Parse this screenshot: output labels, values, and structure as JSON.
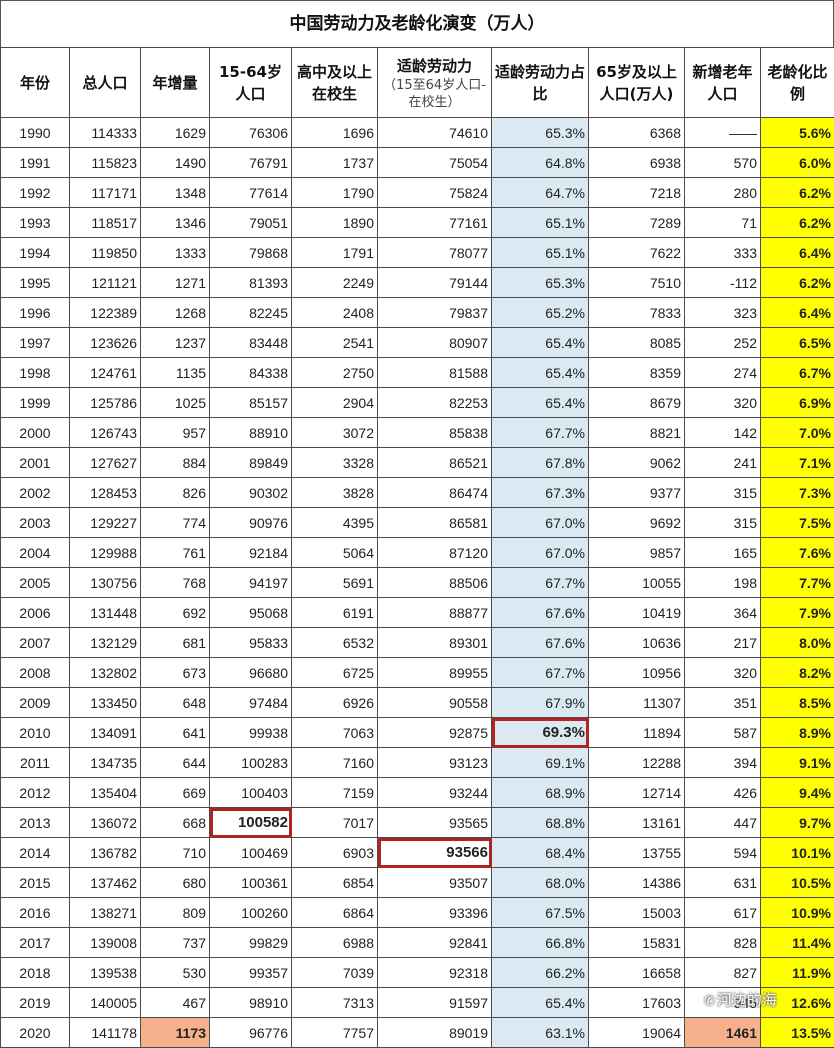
{
  "title": "中国劳动力及老龄化演变（万人）",
  "headers": [
    {
      "main": "年份",
      "sub": ""
    },
    {
      "main": "总人口",
      "sub": ""
    },
    {
      "main": "年增量",
      "sub": ""
    },
    {
      "main": "15-64岁人口",
      "sub": ""
    },
    {
      "main": "高中及以上在校生",
      "sub": ""
    },
    {
      "main": "适龄劳动力",
      "sub": "（15至64岁人口-在校生）"
    },
    {
      "main": "适龄劳动力占比",
      "sub": ""
    },
    {
      "main": "65岁及以上人口(万人)",
      "sub": ""
    },
    {
      "main": "新增老年人口",
      "sub": ""
    },
    {
      "main": "老龄化比例",
      "sub": ""
    }
  ],
  "rows": [
    [
      "1990",
      "114333",
      "1629",
      "76306",
      "1696",
      "74610",
      "65.3%",
      "6368",
      "——",
      "5.6%"
    ],
    [
      "1991",
      "115823",
      "1490",
      "76791",
      "1737",
      "75054",
      "64.8%",
      "6938",
      "570",
      "6.0%"
    ],
    [
      "1992",
      "117171",
      "1348",
      "77614",
      "1790",
      "75824",
      "64.7%",
      "7218",
      "280",
      "6.2%"
    ],
    [
      "1993",
      "118517",
      "1346",
      "79051",
      "1890",
      "77161",
      "65.1%",
      "7289",
      "71",
      "6.2%"
    ],
    [
      "1994",
      "119850",
      "1333",
      "79868",
      "1791",
      "78077",
      "65.1%",
      "7622",
      "333",
      "6.4%"
    ],
    [
      "1995",
      "121121",
      "1271",
      "81393",
      "2249",
      "79144",
      "65.3%",
      "7510",
      "-112",
      "6.2%"
    ],
    [
      "1996",
      "122389",
      "1268",
      "82245",
      "2408",
      "79837",
      "65.2%",
      "7833",
      "323",
      "6.4%"
    ],
    [
      "1997",
      "123626",
      "1237",
      "83448",
      "2541",
      "80907",
      "65.4%",
      "8085",
      "252",
      "6.5%"
    ],
    [
      "1998",
      "124761",
      "1135",
      "84338",
      "2750",
      "81588",
      "65.4%",
      "8359",
      "274",
      "6.7%"
    ],
    [
      "1999",
      "125786",
      "1025",
      "85157",
      "2904",
      "82253",
      "65.4%",
      "8679",
      "320",
      "6.9%"
    ],
    [
      "2000",
      "126743",
      "957",
      "88910",
      "3072",
      "85838",
      "67.7%",
      "8821",
      "142",
      "7.0%"
    ],
    [
      "2001",
      "127627",
      "884",
      "89849",
      "3328",
      "86521",
      "67.8%",
      "9062",
      "241",
      "7.1%"
    ],
    [
      "2002",
      "128453",
      "826",
      "90302",
      "3828",
      "86474",
      "67.3%",
      "9377",
      "315",
      "7.3%"
    ],
    [
      "2003",
      "129227",
      "774",
      "90976",
      "4395",
      "86581",
      "67.0%",
      "9692",
      "315",
      "7.5%"
    ],
    [
      "2004",
      "129988",
      "761",
      "92184",
      "5064",
      "87120",
      "67.0%",
      "9857",
      "165",
      "7.6%"
    ],
    [
      "2005",
      "130756",
      "768",
      "94197",
      "5691",
      "88506",
      "67.7%",
      "10055",
      "198",
      "7.7%"
    ],
    [
      "2006",
      "131448",
      "692",
      "95068",
      "6191",
      "88877",
      "67.6%",
      "10419",
      "364",
      "7.9%"
    ],
    [
      "2007",
      "132129",
      "681",
      "95833",
      "6532",
      "89301",
      "67.6%",
      "10636",
      "217",
      "8.0%"
    ],
    [
      "2008",
      "132802",
      "673",
      "96680",
      "6725",
      "89955",
      "67.7%",
      "10956",
      "320",
      "8.2%"
    ],
    [
      "2009",
      "133450",
      "648",
      "97484",
      "6926",
      "90558",
      "67.9%",
      "11307",
      "351",
      "8.5%"
    ],
    [
      "2010",
      "134091",
      "641",
      "99938",
      "7063",
      "92875",
      "69.3%",
      "11894",
      "587",
      "8.9%"
    ],
    [
      "2011",
      "134735",
      "644",
      "100283",
      "7160",
      "93123",
      "69.1%",
      "12288",
      "394",
      "9.1%"
    ],
    [
      "2012",
      "135404",
      "669",
      "100403",
      "7159",
      "93244",
      "68.9%",
      "12714",
      "426",
      "9.4%"
    ],
    [
      "2013",
      "136072",
      "668",
      "100582",
      "7017",
      "93565",
      "68.8%",
      "13161",
      "447",
      "9.7%"
    ],
    [
      "2014",
      "136782",
      "710",
      "100469",
      "6903",
      "93566",
      "68.4%",
      "13755",
      "594",
      "10.1%"
    ],
    [
      "2015",
      "137462",
      "680",
      "100361",
      "6854",
      "93507",
      "68.0%",
      "14386",
      "631",
      "10.5%"
    ],
    [
      "2016",
      "138271",
      "809",
      "100260",
      "6864",
      "93396",
      "67.5%",
      "15003",
      "617",
      "10.9%"
    ],
    [
      "2017",
      "139008",
      "737",
      "99829",
      "6988",
      "92841",
      "66.8%",
      "15831",
      "828",
      "11.4%"
    ],
    [
      "2018",
      "139538",
      "530",
      "99357",
      "7039",
      "92318",
      "66.2%",
      "16658",
      "827",
      "11.9%"
    ],
    [
      "2019",
      "140005",
      "467",
      "98910",
      "7313",
      "91597",
      "65.4%",
      "17603",
      "945",
      "12.6%"
    ],
    [
      "2020",
      "141178",
      "1173",
      "96776",
      "7757",
      "89019",
      "63.1%",
      "19064",
      "1461",
      "13.5%"
    ]
  ],
  "highlights": {
    "boxed": [
      [
        20,
        6
      ],
      [
        23,
        3
      ],
      [
        24,
        5
      ]
    ],
    "orange": [
      [
        30,
        2
      ],
      [
        30,
        8
      ]
    ]
  },
  "colors": {
    "ratio_column_bg": "#dbe9f2",
    "aging_column_bg": "#ffff00",
    "box_border": "#b12424",
    "orange_bg": "#f6b18c",
    "orange_text": "#cc1f1f"
  },
  "watermark": {
    "icon": "wechat-icon",
    "text": "河边的海"
  }
}
